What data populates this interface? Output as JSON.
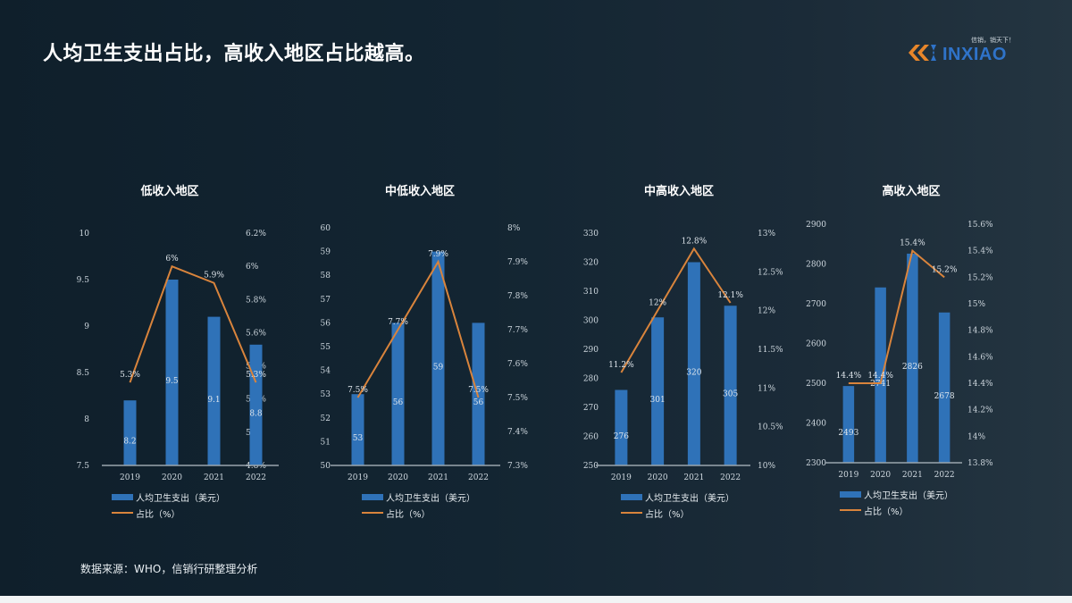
{
  "header": {
    "title": "人均卫生支出占比，高收入地区占比越高。",
    "logo": {
      "slogan": "信销，销天下！",
      "brand": "INXIAO"
    }
  },
  "footer": {
    "source": "数据来源：WHO，信销行研整理分析"
  },
  "legend": {
    "bar_label": "人均卫生支出（美元）",
    "line_label": "占比（%）"
  },
  "colors": {
    "bar": "#2f72b8",
    "line": "#d9843c",
    "axis": "#9aa5ad",
    "background": "#132532"
  },
  "chart_data": [
    {
      "type": "bar+line",
      "title": "低收入地区",
      "categories": [
        "2019",
        "2020",
        "2021",
        "2022"
      ],
      "series": [
        {
          "name": "人均卫生支出（美元）",
          "type": "bar",
          "axis": "left",
          "values": [
            8.2,
            9.5,
            9.1,
            8.8
          ],
          "labels": [
            "8.2",
            "9.5",
            "9.1",
            "8.8"
          ]
        },
        {
          "name": "占比（%）",
          "type": "line",
          "axis": "right",
          "values": [
            5.3,
            6.0,
            5.9,
            5.3
          ],
          "labels": [
            "5.3%",
            "6%",
            "5.9%",
            "5.3%"
          ]
        }
      ],
      "ylim_left": [
        7.5,
        10
      ],
      "yticks_left": [
        "10",
        "9.5",
        "9",
        "8.5",
        "8",
        "7.5"
      ],
      "ylim_right": [
        4.8,
        6.2
      ],
      "yticks_right": [
        "6.2%",
        "6%",
        "5.8%",
        "5.6%",
        "5.4%",
        "5.2%",
        "5%",
        "4.8%"
      ],
      "grid": false,
      "legend_position": "bottom"
    },
    {
      "type": "bar+line",
      "title": "中低收入地区",
      "categories": [
        "2019",
        "2020",
        "2021",
        "2022"
      ],
      "series": [
        {
          "name": "人均卫生支出（美元）",
          "type": "bar",
          "axis": "left",
          "values": [
            53,
            56,
            59,
            56
          ],
          "labels": [
            "53",
            "56",
            "59",
            "56"
          ]
        },
        {
          "name": "占比（%）",
          "type": "line",
          "axis": "right",
          "values": [
            7.5,
            7.7,
            7.9,
            7.5
          ],
          "labels": [
            "7.5%",
            "7.7%",
            "7.9%",
            "7.5%"
          ]
        }
      ],
      "ylim_left": [
        50,
        60
      ],
      "yticks_left": [
        "60",
        "59",
        "58",
        "57",
        "56",
        "55",
        "54",
        "53",
        "52",
        "51",
        "50"
      ],
      "ylim_right": [
        7.3,
        8.0
      ],
      "yticks_right": [
        "8%",
        "7.9%",
        "7.8%",
        "7.7%",
        "7.6%",
        "7.5%",
        "7.4%",
        "7.3%"
      ],
      "grid": false,
      "legend_position": "bottom"
    },
    {
      "type": "bar+line",
      "title": "中高收入地区",
      "categories": [
        "2019",
        "2020",
        "2021",
        "2022"
      ],
      "series": [
        {
          "name": "人均卫生支出（美元）",
          "type": "bar",
          "axis": "left",
          "values": [
            276,
            301,
            320,
            305
          ],
          "labels": [
            "276",
            "301",
            "320",
            "305"
          ]
        },
        {
          "name": "占比（%）",
          "type": "line",
          "axis": "right",
          "values": [
            11.2,
            12.0,
            12.8,
            12.1
          ],
          "labels": [
            "11.2%",
            "12%",
            "12.8%",
            "12.1%"
          ]
        }
      ],
      "ylim_left": [
        250,
        330
      ],
      "yticks_left": [
        "330",
        "320",
        "310",
        "300",
        "290",
        "280",
        "270",
        "260",
        "250"
      ],
      "ylim_right": [
        10,
        13
      ],
      "yticks_right": [
        "13%",
        "12.5%",
        "12%",
        "11.5%",
        "11%",
        "10.5%",
        "10%"
      ],
      "grid": false,
      "legend_position": "bottom"
    },
    {
      "type": "bar+line",
      "title": "高收入地区",
      "categories": [
        "2019",
        "2020",
        "2021",
        "2022"
      ],
      "series": [
        {
          "name": "人均卫生支出（美元）",
          "type": "bar",
          "axis": "left",
          "values": [
            2493,
            2741,
            2826,
            2678
          ],
          "labels": [
            "2493",
            "2741",
            "2826",
            "2678"
          ]
        },
        {
          "name": "占比（%）",
          "type": "line",
          "axis": "right",
          "values": [
            14.4,
            14.4,
            15.4,
            15.2
          ],
          "labels": [
            "14.4%",
            "14.4%",
            "15.4%",
            "15.2%"
          ]
        }
      ],
      "ylim_left": [
        2300,
        2900
      ],
      "yticks_left": [
        "2900",
        "2800",
        "2700",
        "2600",
        "2500",
        "2400",
        "2300"
      ],
      "ylim_right": [
        13.8,
        15.6
      ],
      "yticks_right": [
        "15.6%",
        "15.4%",
        "15.2%",
        "15%",
        "14.8%",
        "14.6%",
        "14.4%",
        "14.2%",
        "14%",
        "13.8%"
      ],
      "grid": false,
      "legend_position": "bottom"
    }
  ]
}
